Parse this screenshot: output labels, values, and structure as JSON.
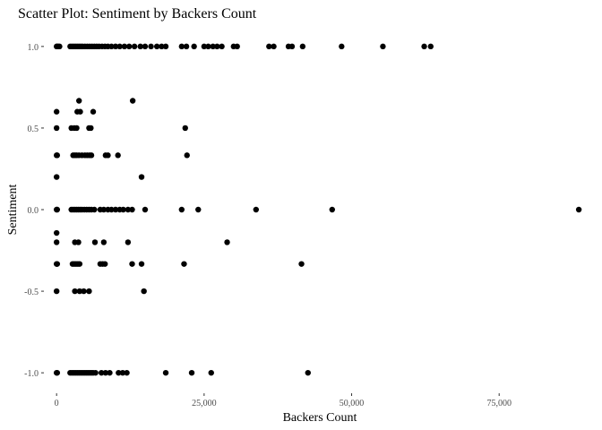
{
  "chart_data": {
    "type": "scatter",
    "title": "Scatter Plot: Sentiment by Backers Count",
    "xlabel": "Backers Count",
    "ylabel": "Sentiment",
    "xlim": [
      -2000,
      90000
    ],
    "ylim": [
      -1.12,
      1.12
    ],
    "xticks": [
      0,
      25000,
      50000,
      75000
    ],
    "xtick_labels": [
      "0",
      "25,000",
      "50,000",
      "75,000"
    ],
    "yticks": [
      -1.0,
      -0.5,
      0.0,
      0.5,
      1.0
    ],
    "ytick_labels": [
      "-1.0",
      "-0.5",
      "0.0",
      "0.5",
      "1.0"
    ],
    "grid": false,
    "legend": "none",
    "point_color": "#000000",
    "series": [
      {
        "points": [
          [
            0,
            1.0
          ],
          [
            100,
            1.0
          ],
          [
            300,
            1.0
          ],
          [
            500,
            1.0
          ],
          [
            2300,
            1.0
          ],
          [
            2600,
            1.0
          ],
          [
            2900,
            1.0
          ],
          [
            3200,
            1.0
          ],
          [
            3500,
            1.0
          ],
          [
            3800,
            1.0
          ],
          [
            4100,
            1.0
          ],
          [
            4400,
            1.0
          ],
          [
            4800,
            1.0
          ],
          [
            5200,
            1.0
          ],
          [
            5600,
            1.0
          ],
          [
            6000,
            1.0
          ],
          [
            6400,
            1.0
          ],
          [
            6800,
            1.0
          ],
          [
            7200,
            1.0
          ],
          [
            7700,
            1.0
          ],
          [
            8200,
            1.0
          ],
          [
            8700,
            1.0
          ],
          [
            9300,
            1.0
          ],
          [
            10000,
            1.0
          ],
          [
            10700,
            1.0
          ],
          [
            11500,
            1.0
          ],
          [
            12300,
            1.0
          ],
          [
            13200,
            1.0
          ],
          [
            14200,
            1.0
          ],
          [
            15000,
            1.0
          ],
          [
            16000,
            1.0
          ],
          [
            17000,
            1.0
          ],
          [
            17800,
            1.0
          ],
          [
            18500,
            1.0
          ],
          [
            21200,
            1.0
          ],
          [
            22000,
            1.0
          ],
          [
            23300,
            1.0
          ],
          [
            25000,
            1.0
          ],
          [
            25700,
            1.0
          ],
          [
            26500,
            1.0
          ],
          [
            27200,
            1.0
          ],
          [
            28000,
            1.0
          ],
          [
            30000,
            1.0
          ],
          [
            30600,
            1.0
          ],
          [
            36000,
            1.0
          ],
          [
            36800,
            1.0
          ],
          [
            39300,
            1.0
          ],
          [
            39900,
            1.0
          ],
          [
            41700,
            1.0
          ],
          [
            48300,
            1.0
          ],
          [
            55300,
            1.0
          ],
          [
            62300,
            1.0
          ],
          [
            63400,
            1.0
          ],
          [
            3800,
            0.667
          ],
          [
            12900,
            0.667
          ],
          [
            0,
            0.6
          ],
          [
            3500,
            0.6
          ],
          [
            4000,
            0.6
          ],
          [
            6200,
            0.6
          ],
          [
            0,
            0.5
          ],
          [
            2500,
            0.5
          ],
          [
            3000,
            0.5
          ],
          [
            3400,
            0.5
          ],
          [
            5500,
            0.5
          ],
          [
            5800,
            0.5
          ],
          [
            21800,
            0.5
          ],
          [
            0,
            0.333
          ],
          [
            100,
            0.333
          ],
          [
            2800,
            0.333
          ],
          [
            3100,
            0.333
          ],
          [
            3400,
            0.333
          ],
          [
            3800,
            0.333
          ],
          [
            4300,
            0.333
          ],
          [
            4800,
            0.333
          ],
          [
            5200,
            0.333
          ],
          [
            5600,
            0.333
          ],
          [
            5900,
            0.333
          ],
          [
            8300,
            0.333
          ],
          [
            8700,
            0.333
          ],
          [
            10400,
            0.333
          ],
          [
            22100,
            0.333
          ],
          [
            0,
            0.2
          ],
          [
            14400,
            0.2
          ],
          [
            0,
            0.0
          ],
          [
            100,
            0.0
          ],
          [
            2500,
            0.0
          ],
          [
            2800,
            0.0
          ],
          [
            3100,
            0.0
          ],
          [
            3400,
            0.0
          ],
          [
            3700,
            0.0
          ],
          [
            4000,
            0.0
          ],
          [
            4300,
            0.0
          ],
          [
            4700,
            0.0
          ],
          [
            5100,
            0.0
          ],
          [
            5500,
            0.0
          ],
          [
            5900,
            0.0
          ],
          [
            6400,
            0.0
          ],
          [
            7400,
            0.0
          ],
          [
            8000,
            0.0
          ],
          [
            8700,
            0.0
          ],
          [
            9300,
            0.0
          ],
          [
            10000,
            0.0
          ],
          [
            10700,
            0.0
          ],
          [
            11300,
            0.0
          ],
          [
            12100,
            0.0
          ],
          [
            12800,
            0.0
          ],
          [
            15000,
            0.0
          ],
          [
            21200,
            0.0
          ],
          [
            24000,
            0.0
          ],
          [
            33800,
            0.0
          ],
          [
            46700,
            0.0
          ],
          [
            88500,
            0.0
          ],
          [
            0,
            -0.143
          ],
          [
            0,
            -0.2
          ],
          [
            3100,
            -0.2
          ],
          [
            3700,
            -0.2
          ],
          [
            6500,
            -0.2
          ],
          [
            8000,
            -0.2
          ],
          [
            12100,
            -0.2
          ],
          [
            28900,
            -0.2
          ],
          [
            0,
            -0.333
          ],
          [
            100,
            -0.333
          ],
          [
            2700,
            -0.333
          ],
          [
            3000,
            -0.333
          ],
          [
            3300,
            -0.333
          ],
          [
            3600,
            -0.333
          ],
          [
            3900,
            -0.333
          ],
          [
            7400,
            -0.333
          ],
          [
            7800,
            -0.333
          ],
          [
            8200,
            -0.333
          ],
          [
            12800,
            -0.333
          ],
          [
            14400,
            -0.333
          ],
          [
            21600,
            -0.333
          ],
          [
            41500,
            -0.333
          ],
          [
            0,
            -0.5
          ],
          [
            3100,
            -0.5
          ],
          [
            3900,
            -0.5
          ],
          [
            4600,
            -0.5
          ],
          [
            5500,
            -0.5
          ],
          [
            14800,
            -0.5
          ],
          [
            0,
            -1.0
          ],
          [
            100,
            -1.0
          ],
          [
            2300,
            -1.0
          ],
          [
            2600,
            -1.0
          ],
          [
            2900,
            -1.0
          ],
          [
            3200,
            -1.0
          ],
          [
            3500,
            -1.0
          ],
          [
            3800,
            -1.0
          ],
          [
            4100,
            -1.0
          ],
          [
            4400,
            -1.0
          ],
          [
            4700,
            -1.0
          ],
          [
            5000,
            -1.0
          ],
          [
            5300,
            -1.0
          ],
          [
            5600,
            -1.0
          ],
          [
            5900,
            -1.0
          ],
          [
            6200,
            -1.0
          ],
          [
            6600,
            -1.0
          ],
          [
            7600,
            -1.0
          ],
          [
            8300,
            -1.0
          ],
          [
            9000,
            -1.0
          ],
          [
            10500,
            -1.0
          ],
          [
            11200,
            -1.0
          ],
          [
            11900,
            -1.0
          ],
          [
            18500,
            -1.0
          ],
          [
            22900,
            -1.0
          ],
          [
            26200,
            -1.0
          ],
          [
            42600,
            -1.0
          ]
        ]
      }
    ]
  }
}
